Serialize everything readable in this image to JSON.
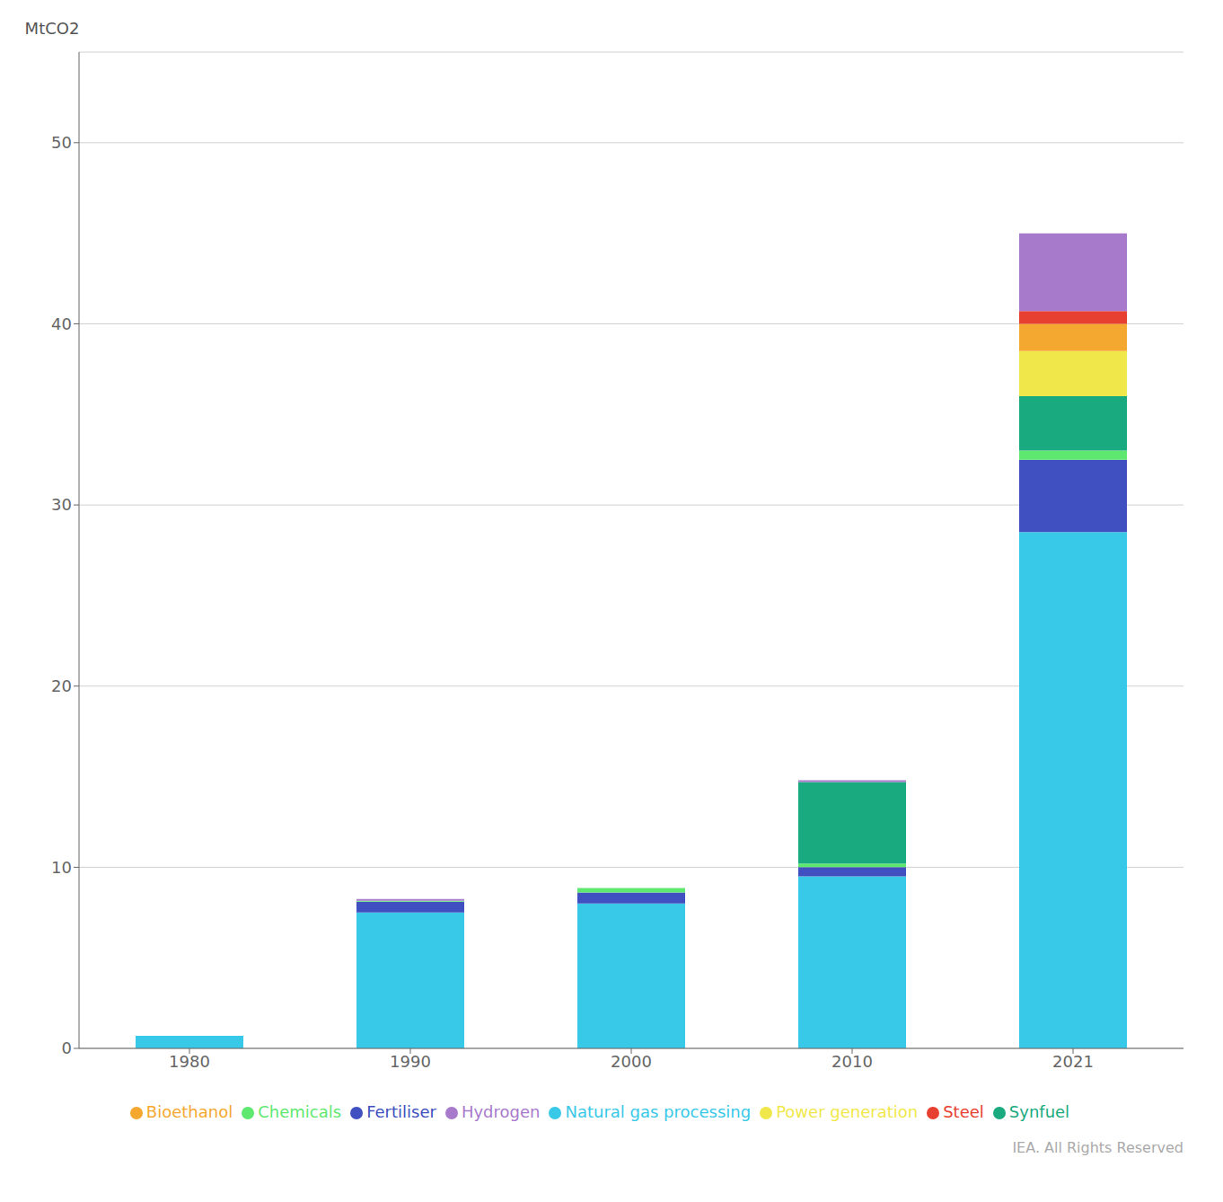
{
  "chart_data": {
    "type": "bar",
    "stacked": true,
    "ylabel": "MtCO2",
    "annotations": [
      "IEA. All Rights Reserved"
    ],
    "categories": [
      "1980",
      "1990",
      "2000",
      "2010",
      "2021"
    ],
    "series": [
      {
        "name": "Natural gas processing",
        "color": "#38C8E8",
        "values": [
          0.7,
          7.5,
          8.0,
          9.5,
          28.5
        ]
      },
      {
        "name": "Fertiliser",
        "color": "#4050C0",
        "values": [
          0.0,
          0.6,
          0.6,
          0.5,
          4.0
        ]
      },
      {
        "name": "Chemicals",
        "color": "#5EE870",
        "values": [
          0.0,
          0.05,
          0.25,
          0.2,
          0.5
        ]
      },
      {
        "name": "Synfuel",
        "color": "#1AAA80",
        "values": [
          0.0,
          0.0,
          0.0,
          4.5,
          3.0
        ]
      },
      {
        "name": "Power generation",
        "color": "#F0E84A",
        "values": [
          0.0,
          0.0,
          0.0,
          0.0,
          2.5
        ]
      },
      {
        "name": "Bioethanol",
        "color": "#F5A830",
        "values": [
          0.0,
          0.0,
          0.0,
          0.0,
          1.5
        ]
      },
      {
        "name": "Steel",
        "color": "#E84030",
        "values": [
          0.0,
          0.0,
          0.0,
          0.0,
          0.7
        ]
      },
      {
        "name": "Hydrogen",
        "color": "#A87ACC",
        "values": [
          0.0,
          0.1,
          0.0,
          0.1,
          4.3
        ]
      }
    ],
    "ylim": [
      0,
      55
    ],
    "yticks": [
      0,
      10,
      20,
      30,
      40,
      50
    ],
    "grid": true,
    "legend": "bottom"
  }
}
